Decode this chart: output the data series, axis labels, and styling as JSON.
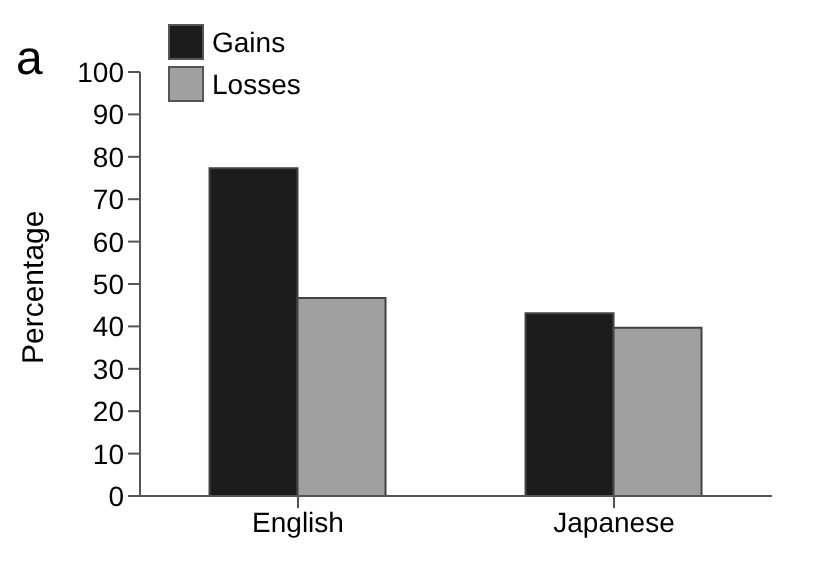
{
  "chart_data": {
    "type": "bar",
    "ylabel": "Percentage",
    "categories": [
      "English",
      "Japanese"
    ],
    "series": [
      {
        "name": "Gains",
        "color": "#1c1c1c",
        "values": [
          77.3,
          43.1
        ]
      },
      {
        "name": "Losses",
        "color": "#a0a0a0",
        "values": [
          46.7,
          39.7
        ]
      }
    ],
    "ylim": [
      0,
      100
    ],
    "yticks": [
      0,
      10,
      20,
      30,
      40,
      50,
      60,
      70,
      80,
      90,
      100
    ],
    "grid": false,
    "legend": "top left",
    "annotations": [
      "a"
    ]
  }
}
